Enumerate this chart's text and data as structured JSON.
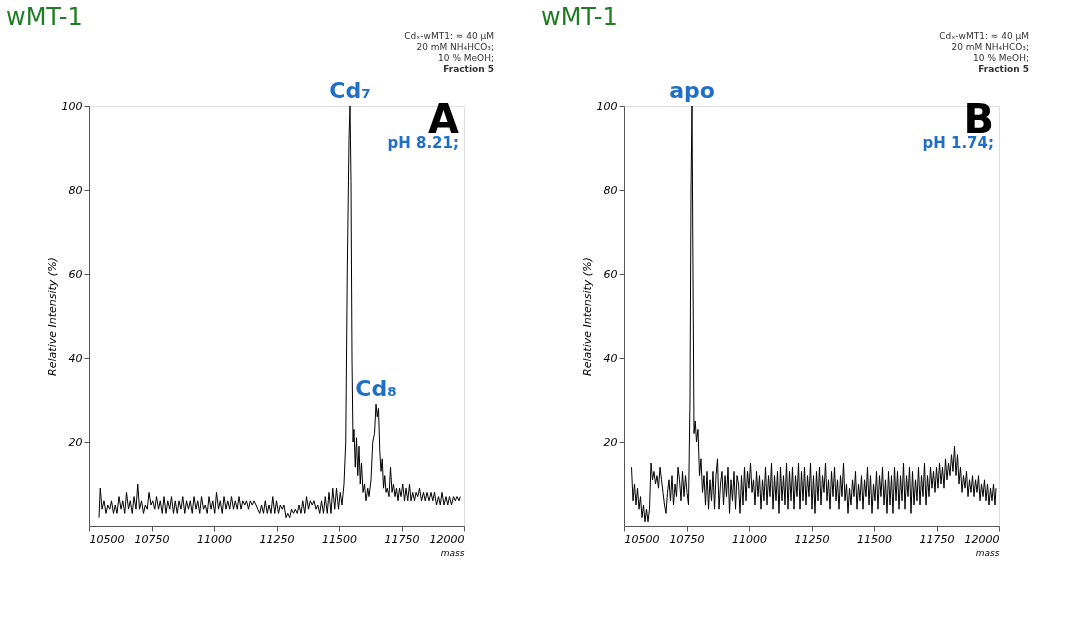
{
  "chart_data": [
    {
      "type": "line",
      "title": "wMT-1",
      "xlabel": "mass",
      "ylabel": "Relative Intensity (%)",
      "xlim": [
        10500,
        12000
      ],
      "xticks": [
        10500,
        10750,
        11000,
        11250,
        11500,
        11750,
        12000
      ],
      "ylim": [
        0,
        100
      ],
      "yticks": [
        20,
        40,
        60,
        80,
        100
      ],
      "grid": false,
      "marker": "none",
      "line_style": "solid",
      "x": [
        10540,
        10545,
        10552,
        10560,
        10568,
        10575,
        10583,
        10590,
        10598,
        10605,
        10612,
        10620,
        10628,
        10635,
        10643,
        10650,
        10658,
        10665,
        10673,
        10680,
        10688,
        10695,
        10702,
        10710,
        10718,
        10725,
        10733,
        10740,
        10748,
        10755,
        10763,
        10770,
        10778,
        10785,
        10793,
        10800,
        10808,
        10815,
        10823,
        10830,
        10838,
        10845,
        10853,
        10860,
        10868,
        10875,
        10883,
        10890,
        10898,
        10905,
        10913,
        10920,
        10928,
        10935,
        10943,
        10950,
        10958,
        10965,
        10973,
        10980,
        10988,
        10995,
        11003,
        11010,
        11018,
        11025,
        11033,
        11040,
        11048,
        11055,
        11063,
        11070,
        11078,
        11085,
        11093,
        11100,
        11108,
        11115,
        11123,
        11130,
        11138,
        11145,
        11153,
        11160,
        11168,
        11175,
        11183,
        11190,
        11198,
        11205,
        11213,
        11220,
        11228,
        11235,
        11243,
        11250,
        11258,
        11265,
        11273,
        11280,
        11288,
        11295,
        11303,
        11310,
        11318,
        11325,
        11333,
        11340,
        11348,
        11355,
        11363,
        11370,
        11378,
        11385,
        11393,
        11400,
        11408,
        11415,
        11423,
        11430,
        11438,
        11445,
        11453,
        11460,
        11468,
        11475,
        11483,
        11490,
        11498,
        11505,
        11512,
        11520,
        11527,
        11533,
        11540,
        11544,
        11548,
        11552,
        11556,
        11560,
        11565,
        11570,
        11575,
        11580,
        11585,
        11590,
        11596,
        11602,
        11608,
        11615,
        11620,
        11628,
        11635,
        11642,
        11648,
        11653,
        11658,
        11663,
        11668,
        11673,
        11678,
        11683,
        11688,
        11693,
        11700,
        11706,
        11712,
        11718,
        11724,
        11730,
        11736,
        11742,
        11748,
        11755,
        11762,
        11768,
        11775,
        11782,
        11788,
        11795,
        11802,
        11808,
        11815,
        11822,
        11830,
        11838,
        11845,
        11852,
        11860,
        11868,
        11875,
        11882,
        11890,
        11898,
        11905,
        11912,
        11920,
        11928,
        11935,
        11942,
        11950,
        11958,
        11965,
        11972,
        11980,
        11985
      ],
      "series": [
        {
          "color": "#000000",
          "values": [
            2,
            9,
            4,
            6,
            3,
            5,
            4,
            6,
            3,
            5,
            3,
            7,
            4,
            6,
            3,
            8,
            4,
            6,
            3,
            7,
            4,
            10,
            4,
            6,
            3,
            5,
            4,
            8,
            5,
            6,
            4,
            7,
            4,
            6,
            3,
            7,
            3,
            6,
            4,
            7,
            3,
            6,
            3,
            6,
            4,
            7,
            3,
            6,
            4,
            6,
            3,
            7,
            4,
            6,
            3,
            7,
            4,
            5,
            3,
            7,
            4,
            6,
            3,
            8,
            4,
            6,
            3,
            7,
            4,
            6,
            4,
            7,
            4,
            6,
            4,
            7,
            4,
            6,
            5,
            6,
            4,
            6,
            5,
            6,
            5,
            4,
            3,
            5,
            3,
            6,
            3,
            5,
            3,
            7,
            3,
            6,
            3,
            5,
            4,
            5,
            2,
            3,
            2,
            4,
            3,
            4,
            3,
            5,
            3,
            6,
            3,
            7,
            4,
            6,
            5,
            6,
            4,
            5,
            3,
            6,
            3,
            7,
            3,
            8,
            3,
            9,
            4,
            9,
            4,
            8,
            5,
            10,
            20,
            60,
            92,
            100,
            82,
            40,
            20,
            23,
            14,
            21,
            12,
            19,
            10,
            15,
            8,
            10,
            6,
            9,
            7,
            11,
            20,
            22,
            29,
            26,
            28,
            18,
            13,
            16,
            9,
            12,
            8,
            9,
            7,
            14,
            8,
            10,
            7,
            9,
            6,
            9,
            7,
            10,
            6,
            9,
            6,
            10,
            6,
            8,
            6,
            8,
            7,
            9,
            6,
            8,
            6,
            8,
            6,
            8,
            6,
            8,
            5,
            7,
            5,
            8,
            5,
            7,
            5,
            7,
            5,
            7,
            6,
            7,
            6,
            7
          ]
        }
      ],
      "annotations": [
        "Cdₓ-wMT1: ≈ 40 µM",
        "20 mM NH₄HCO₃;",
        "10 % MeOH;",
        "Fraction 5",
        "A",
        "pH 8.21;",
        {
          "text": "Cd₇",
          "x": 11544,
          "y": 100
        },
        {
          "text": "Cd₈",
          "x": 11648,
          "y": 29
        }
      ]
    },
    {
      "type": "line",
      "title": "wMT-1",
      "xlabel": "mass",
      "ylabel": "Relative Intensity (%)",
      "xlim": [
        10500,
        12000
      ],
      "xticks": [
        10500,
        10750,
        11000,
        11250,
        11500,
        11750,
        12000
      ],
      "ylim": [
        0,
        100
      ],
      "yticks": [
        20,
        40,
        60,
        80,
        100
      ],
      "grid": false,
      "marker": "none",
      "line_style": "solid",
      "x": [
        10530,
        10536,
        10542,
        10548,
        10554,
        10560,
        10566,
        10572,
        10578,
        10584,
        10590,
        10596,
        10602,
        10608,
        10614,
        10620,
        10626,
        10632,
        10638,
        10644,
        10650,
        10656,
        10662,
        10668,
        10674,
        10680,
        10686,
        10692,
        10698,
        10704,
        10710,
        10716,
        10722,
        10728,
        10734,
        10740,
        10746,
        10752,
        10758,
        10764,
        10768,
        10772,
        10776,
        10780,
        10785,
        10790,
        10796,
        10802,
        10808,
        10814,
        10820,
        10826,
        10832,
        10838,
        10844,
        10850,
        10856,
        10862,
        10868,
        10874,
        10880,
        10886,
        10892,
        10898,
        10904,
        10910,
        10916,
        10922,
        10928,
        10934,
        10940,
        10946,
        10952,
        10958,
        10964,
        10970,
        10976,
        10982,
        10988,
        10994,
        11000,
        11006,
        11012,
        11018,
        11024,
        11030,
        11036,
        11042,
        11048,
        11054,
        11060,
        11066,
        11072,
        11078,
        11084,
        11090,
        11096,
        11102,
        11108,
        11114,
        11120,
        11126,
        11132,
        11138,
        11144,
        11150,
        11156,
        11162,
        11168,
        11174,
        11180,
        11186,
        11192,
        11198,
        11204,
        11210,
        11216,
        11222,
        11228,
        11234,
        11240,
        11246,
        11252,
        11258,
        11264,
        11270,
        11276,
        11282,
        11288,
        11294,
        11300,
        11306,
        11312,
        11318,
        11324,
        11330,
        11336,
        11342,
        11348,
        11354,
        11360,
        11366,
        11372,
        11378,
        11384,
        11390,
        11396,
        11402,
        11408,
        11414,
        11420,
        11426,
        11432,
        11438,
        11444,
        11450,
        11456,
        11462,
        11468,
        11474,
        11480,
        11486,
        11492,
        11498,
        11504,
        11510,
        11516,
        11522,
        11528,
        11534,
        11540,
        11546,
        11552,
        11558,
        11564,
        11570,
        11576,
        11582,
        11588,
        11594,
        11600,
        11606,
        11612,
        11618,
        11624,
        11630,
        11636,
        11642,
        11648,
        11654,
        11660,
        11666,
        11672,
        11678,
        11684,
        11690,
        11696,
        11702,
        11708,
        11714,
        11720,
        11726,
        11732,
        11738,
        11744,
        11750,
        11756,
        11762,
        11768,
        11774,
        11780,
        11786,
        11792,
        11798,
        11804,
        11810,
        11816,
        11822,
        11828,
        11834,
        11840,
        11846,
        11852,
        11858,
        11864,
        11870,
        11876,
        11882,
        11888,
        11894,
        11900,
        11906,
        11912,
        11918,
        11924,
        11930,
        11936,
        11942,
        11948,
        11954,
        11960,
        11966,
        11972,
        11978,
        11984,
        11988
      ],
      "series": [
        {
          "color": "#000000",
          "values": [
            14,
            6,
            10,
            5,
            9,
            4,
            7,
            2,
            5,
            1,
            4,
            1,
            4,
            15,
            11,
            13,
            10,
            12,
            9,
            14,
            11,
            8,
            5,
            3,
            8,
            11,
            6,
            12,
            5,
            10,
            7,
            14,
            11,
            6,
            13,
            7,
            12,
            8,
            5,
            30,
            80,
            100,
            60,
            22,
            25,
            20,
            23,
            12,
            16,
            8,
            12,
            5,
            13,
            4,
            11,
            6,
            13,
            4,
            12,
            16,
            4,
            10,
            13,
            5,
            12,
            7,
            14,
            3,
            11,
            6,
            13,
            4,
            12,
            10,
            3,
            12,
            5,
            14,
            6,
            13,
            9,
            15,
            8,
            11,
            5,
            13,
            7,
            12,
            4,
            11,
            6,
            14,
            5,
            12,
            7,
            15,
            4,
            12,
            6,
            13,
            3,
            14,
            6,
            12,
            5,
            15,
            4,
            13,
            6,
            14,
            4,
            12,
            7,
            15,
            4,
            13,
            6,
            14,
            5,
            12,
            7,
            15,
            4,
            12,
            3,
            13,
            6,
            14,
            5,
            12,
            8,
            15,
            6,
            11,
            4,
            13,
            7,
            14,
            6,
            11,
            4,
            12,
            7,
            15,
            6,
            10,
            3,
            9,
            5,
            11,
            7,
            13,
            4,
            10,
            6,
            12,
            4,
            11,
            7,
            14,
            5,
            12,
            3,
            10,
            6,
            13,
            4,
            12,
            7,
            14,
            5,
            11,
            3,
            13,
            5,
            12,
            3,
            14,
            6,
            13,
            4,
            12,
            6,
            15,
            4,
            12,
            7,
            14,
            3,
            13,
            5,
            11,
            6,
            14,
            5,
            12,
            7,
            15,
            5,
            12,
            7,
            14,
            9,
            13,
            8,
            14,
            9,
            15,
            10,
            14,
            9,
            16,
            11,
            15,
            12,
            17,
            13,
            19,
            12,
            17,
            10,
            14,
            8,
            12,
            9,
            13,
            7,
            11,
            8,
            12,
            7,
            11,
            8,
            12,
            6,
            10,
            7,
            11,
            6,
            10,
            5,
            9,
            6,
            10,
            5,
            9
          ]
        }
      ],
      "annotations": [
        "Cdₓ-wMT1: ≈ 40 µM",
        "20 mM NH₄HCO₃;",
        "10 % MeOH;",
        "Fraction 5",
        "B",
        "pH 1.74;",
        {
          "text": "apo",
          "x": 10772,
          "y": 100
        }
      ]
    }
  ]
}
